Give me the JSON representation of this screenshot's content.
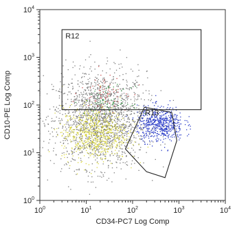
{
  "chart_data": {
    "type": "scatter",
    "scale": "log",
    "xlabel": "CD34-PC7 Log Comp",
    "ylabel": "CD10-PE Log Comp",
    "xlim": [
      1,
      10000
    ],
    "ylim": [
      1,
      10000
    ],
    "grid": false,
    "x_ticks": [
      {
        "value": 1,
        "base": "10",
        "exp": "0"
      },
      {
        "value": 10,
        "base": "10",
        "exp": "1"
      },
      {
        "value": 100,
        "base": "10",
        "exp": "2"
      },
      {
        "value": 1000,
        "base": "10",
        "exp": "3"
      },
      {
        "value": 10000,
        "base": "10",
        "exp": "4"
      }
    ],
    "y_ticks": [
      {
        "value": 1,
        "base": "10",
        "exp": "0"
      },
      {
        "value": 10,
        "base": "10",
        "exp": "1"
      },
      {
        "value": 100,
        "base": "10",
        "exp": "2"
      },
      {
        "value": 1000,
        "base": "10",
        "exp": "3"
      },
      {
        "value": 10000,
        "base": "10",
        "exp": "4"
      }
    ],
    "gates": [
      {
        "name": "R12",
        "shape": "rectangle",
        "x": [
          3,
          3000
        ],
        "y": [
          80,
          3800
        ]
      },
      {
        "name": "R13",
        "shape": "polygon",
        "points": [
          [
            70,
            12
          ],
          [
            180,
            90
          ],
          [
            700,
            70
          ],
          [
            900,
            18
          ],
          [
            500,
            3
          ],
          [
            200,
            4
          ]
        ]
      }
    ],
    "populations": [
      {
        "color": "#7a7a7a",
        "center": [
          20,
          50
        ],
        "spread": [
          0.5,
          0.5
        ],
        "share": 0.55
      },
      {
        "color": "#d9d63a",
        "center": [
          15,
          25
        ],
        "spread": [
          0.35,
          0.28
        ],
        "share": 0.2
      },
      {
        "color": "#2a3cc8",
        "center": [
          400,
          40
        ],
        "spread": [
          0.25,
          0.18
        ],
        "share": 0.18
      },
      {
        "color": "#c84a4a",
        "center": [
          25,
          200
        ],
        "spread": [
          0.25,
          0.2
        ],
        "share": 0.02
      },
      {
        "color": "#3a9a4a",
        "center": [
          30,
          120
        ],
        "spread": [
          0.25,
          0.15
        ],
        "share": 0.02
      }
    ]
  }
}
